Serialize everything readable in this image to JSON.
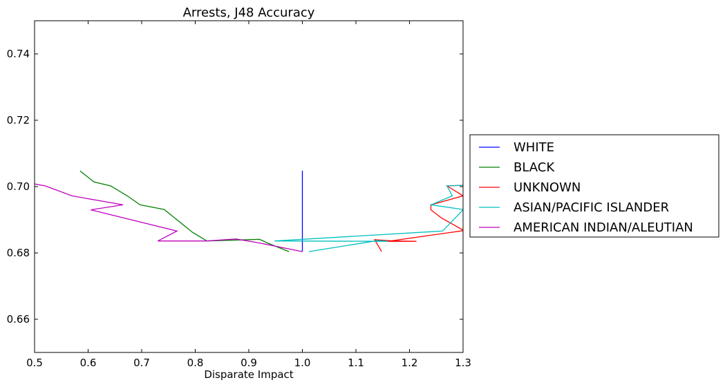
{
  "chart_data": {
    "type": "line",
    "title": "Arrests, J48 Accuracy",
    "xlabel": "Disparate Impact",
    "ylabel": "",
    "xlim": [
      0.5,
      1.3
    ],
    "ylim": [
      0.65,
      0.75
    ],
    "xticks": [
      0.5,
      0.6,
      0.7,
      0.8,
      0.9,
      1.0,
      1.1,
      1.2,
      1.3
    ],
    "xtick_labels": [
      "0.5",
      "0.6",
      "0.7",
      "0.8",
      "0.9",
      "1.0",
      "1.1",
      "1.2",
      "1.3"
    ],
    "yticks": [
      0.66,
      0.68,
      0.7,
      0.72,
      0.74
    ],
    "ytick_labels": [
      "0.66",
      "0.68",
      "0.70",
      "0.72",
      "0.74"
    ],
    "legend_position": "outside-right",
    "series": [
      {
        "name": "WHITE",
        "color": "#0000ff",
        "x": [
          1.0,
          1.0,
          1.0,
          1.0
        ],
        "y": [
          0.7048,
          0.6842,
          0.6836,
          0.6804
        ]
      },
      {
        "name": "BLACK",
        "color": "#008000",
        "x": [
          0.585,
          0.611,
          0.642,
          0.673,
          0.697,
          0.742,
          0.795,
          0.822,
          0.92,
          0.935,
          0.975
        ],
        "y": [
          0.7047,
          0.7014,
          0.7002,
          0.6972,
          0.6945,
          0.6931,
          0.6862,
          0.6836,
          0.6841,
          0.683,
          0.6804
        ]
      },
      {
        "name": "UNKNOWN",
        "color": "#ff0000",
        "x": [
          1.148,
          1.135,
          1.17,
          1.213,
          1.16,
          1.3,
          1.3,
          1.26,
          1.24,
          1.24,
          1.3,
          1.27,
          1.3
        ],
        "y": [
          0.6804,
          0.684,
          0.6836,
          0.6835,
          0.6835,
          0.6867,
          0.6869,
          0.6905,
          0.693,
          0.6945,
          0.6972,
          0.7002,
          0.7004
        ]
      },
      {
        "name": "ASIAN/PACIFIC ISLANDER",
        "color": "#00bfbf",
        "x": [
          1.012,
          1.14,
          1.16,
          0.948,
          1.262,
          1.3,
          1.3,
          1.24,
          1.28,
          1.27,
          1.3,
          1.3
        ],
        "y": [
          0.6804,
          0.6837,
          0.6835,
          0.6836,
          0.6866,
          0.693,
          0.6931,
          0.6945,
          0.6972,
          0.7002,
          0.7004,
          0.7006
        ]
      },
      {
        "name": "AMERICAN INDIAN/ALEUTIAN",
        "color": "#bf00bf",
        "x": [
          0.5,
          0.52,
          0.57,
          0.665,
          0.605,
          0.766,
          0.73,
          0.822,
          0.876,
          0.92,
          1.0
        ],
        "y": [
          0.7008,
          0.7002,
          0.6972,
          0.6945,
          0.693,
          0.6866,
          0.6836,
          0.6836,
          0.6842,
          0.683,
          0.6804
        ]
      }
    ]
  }
}
